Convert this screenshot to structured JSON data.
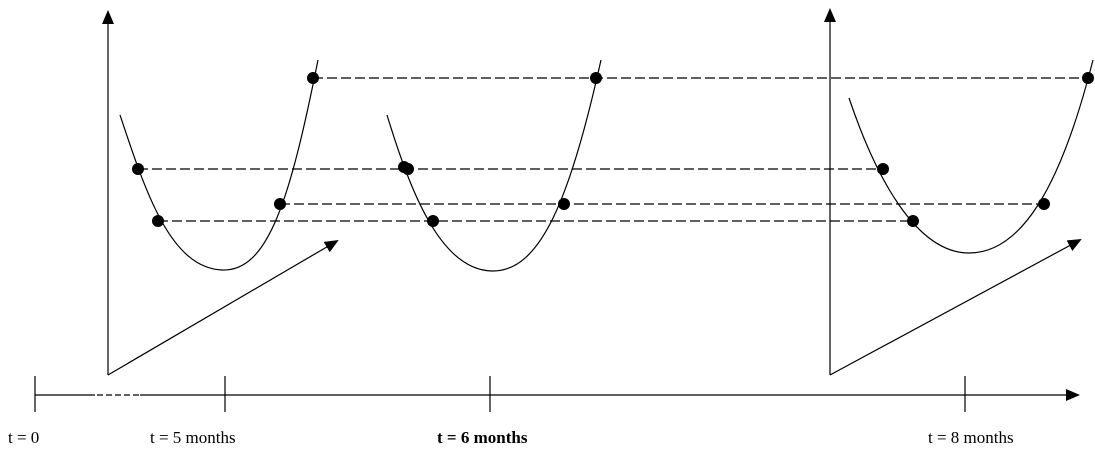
{
  "timeline": {
    "ticks": [
      {
        "label": "t = 0",
        "bold": false
      },
      {
        "label": "t = 5 months",
        "bold": false
      },
      {
        "label": "t = 6 months",
        "bold": true
      },
      {
        "label": "t = 8 months",
        "bold": false
      }
    ]
  },
  "colors": {
    "line": "#000000",
    "background": "#ffffff"
  }
}
